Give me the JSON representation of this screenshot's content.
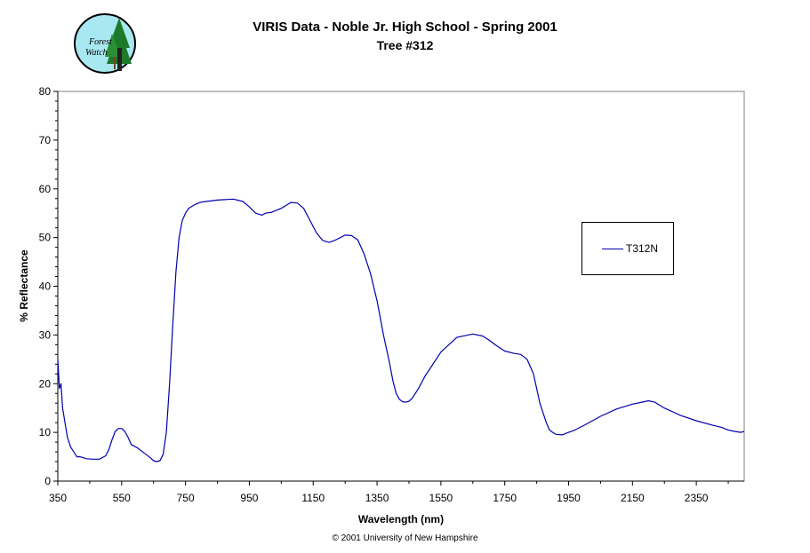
{
  "header": {
    "title_line1": "VIRIS Data - Noble Jr. High School - Spring 2001",
    "title_line2": "Tree #312"
  },
  "logo": {
    "text_line1": "Forest",
    "text_line2": "Watch"
  },
  "footer": {
    "copyright": "© 2001 University of New Hampshire"
  },
  "colors": {
    "series": "#0000b0",
    "logo_bg": "#a8e8f0",
    "logo_tree": "#1e7a2a"
  },
  "chart_data": {
    "type": "line",
    "title": "VIRIS Data - Noble Jr. High School - Spring 2001",
    "subtitle": "Tree #312",
    "xlabel": "Wavelength (nm)",
    "ylabel": "% Reflectance",
    "xlim": [
      350,
      2500
    ],
    "ylim": [
      0,
      80
    ],
    "x_ticks": [
      350,
      550,
      750,
      950,
      1150,
      1350,
      1550,
      1750,
      1950,
      2150,
      2350
    ],
    "y_ticks": [
      0,
      10,
      20,
      30,
      40,
      50,
      60,
      70,
      80
    ],
    "grid": false,
    "legend_position": "right",
    "series": [
      {
        "name": "T312N",
        "x": [
          350,
          355,
          360,
          365,
          370,
          380,
          390,
          400,
          410,
          420,
          440,
          460,
          480,
          500,
          510,
          520,
          530,
          540,
          550,
          560,
          570,
          580,
          600,
          620,
          640,
          650,
          660,
          670,
          680,
          690,
          700,
          710,
          720,
          730,
          740,
          750,
          760,
          780,
          800,
          850,
          900,
          930,
          950,
          970,
          990,
          1000,
          1020,
          1050,
          1080,
          1100,
          1120,
          1140,
          1160,
          1180,
          1200,
          1220,
          1250,
          1270,
          1290,
          1310,
          1330,
          1350,
          1370,
          1390,
          1400,
          1410,
          1420,
          1430,
          1440,
          1450,
          1460,
          1480,
          1500,
          1550,
          1600,
          1650,
          1680,
          1700,
          1720,
          1750,
          1780,
          1800,
          1820,
          1840,
          1850,
          1860,
          1870,
          1880,
          1890,
          1900,
          1910,
          1930,
          1950,
          1970,
          2000,
          2050,
          2100,
          2150,
          2180,
          2200,
          2220,
          2250,
          2300,
          2350,
          2400,
          2430,
          2450,
          2470,
          2490,
          2500
        ],
        "values": [
          25,
          19,
          20,
          15,
          13,
          9,
          7,
          6,
          5,
          5,
          4.6,
          4.5,
          4.5,
          5.2,
          6.5,
          8.5,
          10.2,
          10.8,
          10.8,
          10.2,
          9,
          7.5,
          6.8,
          5.8,
          4.8,
          4.2,
          4.0,
          4.2,
          5.5,
          10,
          20,
          32,
          43,
          50,
          53.5,
          55,
          56,
          56.8,
          57.3,
          57.7,
          57.9,
          57.4,
          56.3,
          55,
          54.6,
          55.0,
          55.2,
          56.0,
          57.2,
          57.1,
          56,
          53.5,
          51,
          49.4,
          49.0,
          49.5,
          50.5,
          50.4,
          49.5,
          46.5,
          42.5,
          37,
          30,
          24,
          20.5,
          18,
          16.8,
          16.3,
          16.2,
          16.4,
          17,
          19,
          21.5,
          26.5,
          29.5,
          30.2,
          29.8,
          29,
          28,
          26.7,
          26.2,
          26,
          25,
          22,
          19,
          16,
          14,
          12,
          10.5,
          10,
          9.6,
          9.5,
          10,
          10.5,
          11.5,
          13.3,
          14.8,
          15.8,
          16.2,
          16.5,
          16.2,
          15,
          13.5,
          12.4,
          11.5,
          11,
          10.5,
          10.2,
          10.0,
          10.2
        ]
      }
    ]
  }
}
